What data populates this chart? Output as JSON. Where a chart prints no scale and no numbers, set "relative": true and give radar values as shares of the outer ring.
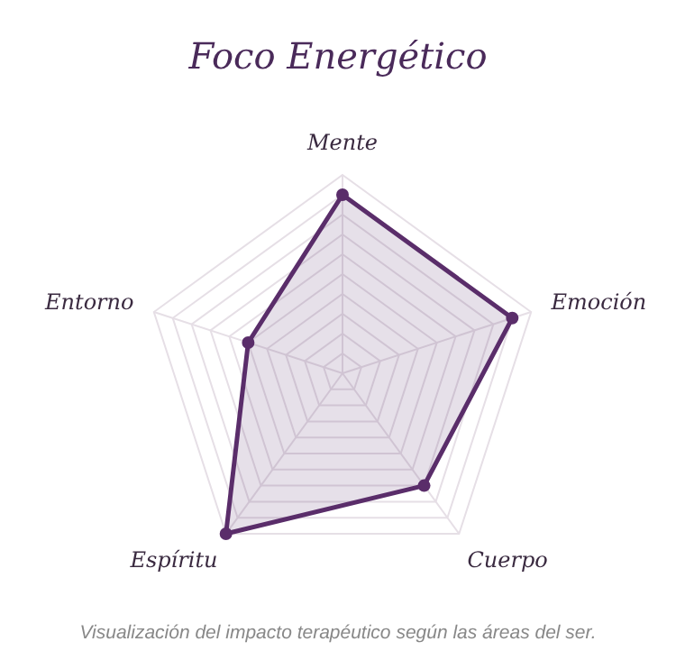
{
  "chart_data": {
    "type": "radar",
    "title": "Foco Energético",
    "categories": [
      "Mente",
      "Emoción",
      "Cuerpo",
      "Espíritu",
      "Entorno"
    ],
    "relative": true,
    "series": [
      {
        "color": "#5a2d6a",
        "values": [
          0.9,
          0.9,
          0.7,
          1.0,
          0.5
        ]
      }
    ],
    "marker": "circle",
    "annotations": [
      "Visualización del impacto terapéutico según las áreas del ser."
    ]
  }
}
